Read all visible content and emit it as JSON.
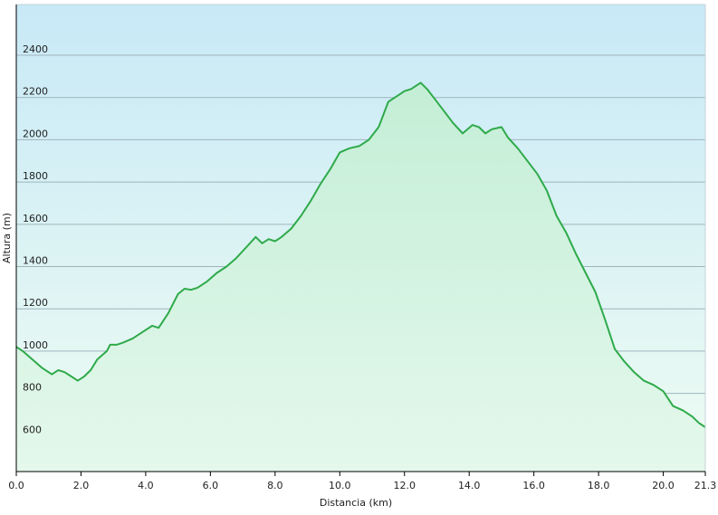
{
  "chart_data": {
    "type": "area",
    "title": "",
    "xlabel": "Distancia  (km)",
    "ylabel": "Altura (m)",
    "xlim": [
      0,
      21.3
    ],
    "ylim": [
      430,
      2640
    ],
    "x_ticks": [
      0.0,
      2.0,
      4.0,
      6.0,
      8.0,
      10.0,
      12.0,
      14.0,
      16.0,
      18.0,
      20.0,
      21.3
    ],
    "x_tick_labels": [
      "0.0",
      "2.0",
      "4.0",
      "6.0",
      "8.0",
      "10.0",
      "12.0",
      "14.0",
      "16.0",
      "18.0",
      "20.0",
      "21.3"
    ],
    "y_ticks": [
      600,
      800,
      1000,
      1200,
      1400,
      1600,
      1800,
      2000,
      2200,
      2400
    ],
    "y_tick_labels": [
      "600",
      "800",
      "1000",
      "1200",
      "1400",
      "1600",
      "1800",
      "2000",
      "2200",
      "2400"
    ],
    "grid": "horizontal",
    "legend": "none",
    "colors": {
      "line": "#2eaa4a",
      "fill_top": "#c4eed6",
      "fill_bottom": "#e4f8ec",
      "bg_top": "#c8e9f7",
      "bg_bottom": "#eefcf2",
      "grid": "#9fb4bc",
      "axis": "#000000"
    },
    "series": [
      {
        "x": [
          0.0,
          0.2,
          0.5,
          0.8,
          1.1,
          1.3,
          1.5,
          1.7,
          1.9,
          2.1,
          2.3,
          2.5,
          2.8,
          2.9,
          3.1,
          3.3,
          3.6,
          3.9,
          4.2,
          4.4,
          4.7,
          5.0,
          5.2,
          5.4,
          5.6,
          5.9,
          6.2,
          6.5,
          6.8,
          7.1,
          7.4,
          7.6,
          7.8,
          8.0,
          8.2,
          8.5,
          8.8,
          9.1,
          9.4,
          9.7,
          10.0,
          10.3,
          10.6,
          10.9,
          11.2,
          11.5,
          11.8,
          12.0,
          12.2,
          12.5,
          12.7,
          12.9,
          13.2,
          13.5,
          13.8,
          14.1,
          14.3,
          14.5,
          14.7,
          15.0,
          15.2,
          15.5,
          15.8,
          16.1,
          16.4,
          16.7,
          17.0,
          17.3,
          17.6,
          17.9,
          18.2,
          18.5,
          18.8,
          19.1,
          19.4,
          19.7,
          20.0,
          20.3,
          20.6,
          20.9,
          21.1,
          21.3
        ],
        "y": [
          1020,
          1000,
          960,
          920,
          890,
          910,
          900,
          880,
          860,
          880,
          910,
          960,
          1000,
          1030,
          1030,
          1040,
          1060,
          1090,
          1120,
          1110,
          1180,
          1270,
          1295,
          1290,
          1300,
          1330,
          1370,
          1400,
          1440,
          1490,
          1540,
          1510,
          1530,
          1520,
          1540,
          1580,
          1640,
          1710,
          1790,
          1860,
          1940,
          1960,
          1970,
          2000,
          2060,
          2180,
          2210,
          2230,
          2240,
          2270,
          2240,
          2200,
          2140,
          2080,
          2030,
          2070,
          2060,
          2030,
          2050,
          2060,
          2010,
          1960,
          1900,
          1840,
          1760,
          1640,
          1560,
          1460,
          1370,
          1280,
          1150,
          1010,
          950,
          900,
          860,
          840,
          810,
          740,
          720,
          690,
          660,
          640
        ]
      }
    ]
  }
}
